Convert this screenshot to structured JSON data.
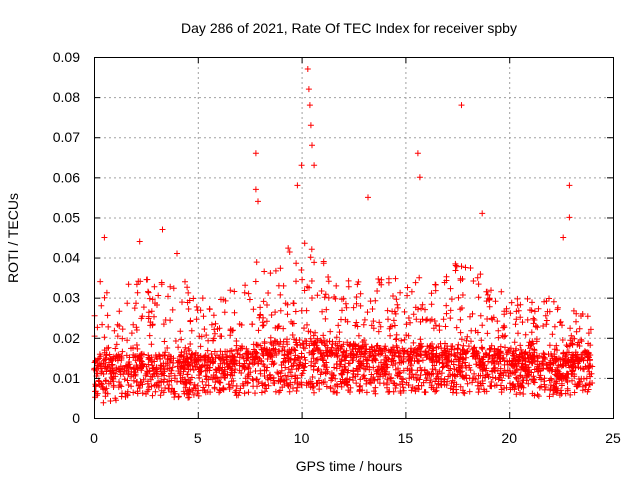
{
  "chart_data": {
    "type": "scatter",
    "title": "Day 286 of 2021, Rate Of TEC Index for receiver spby",
    "xlabel": "GPS time / hours",
    "ylabel": "ROTI / TECUs",
    "xlim": [
      0,
      25
    ],
    "ylim": [
      0,
      0.09
    ],
    "x_ticks": [
      0,
      5,
      10,
      15,
      20,
      25
    ],
    "x_tick_labels": [
      "0",
      "5",
      "10",
      "15",
      "20",
      "25"
    ],
    "y_ticks": [
      0,
      0.01,
      0.02,
      0.03,
      0.04,
      0.05,
      0.06,
      0.07,
      0.08,
      0.09
    ],
    "y_tick_labels": [
      "0",
      "0.01",
      "0.02",
      "0.03",
      "0.04",
      "0.05",
      "0.06",
      "0.07",
      "0.08",
      "0.09"
    ],
    "grid": true,
    "marker": "plus",
    "color": "#ff0000",
    "data_range_x": [
      0,
      24
    ],
    "series": [
      {
        "name": "ROTI",
        "notable_points": [
          {
            "x": 0.3,
            "y": 0.034
          },
          {
            "x": 0.5,
            "y": 0.045
          },
          {
            "x": 2.2,
            "y": 0.044
          },
          {
            "x": 3.3,
            "y": 0.047
          },
          {
            "x": 4.0,
            "y": 0.041
          },
          {
            "x": 7.8,
            "y": 0.066
          },
          {
            "x": 7.8,
            "y": 0.057
          },
          {
            "x": 7.9,
            "y": 0.054
          },
          {
            "x": 9.8,
            "y": 0.058
          },
          {
            "x": 10.0,
            "y": 0.063
          },
          {
            "x": 10.3,
            "y": 0.087
          },
          {
            "x": 10.35,
            "y": 0.082
          },
          {
            "x": 10.4,
            "y": 0.078
          },
          {
            "x": 10.45,
            "y": 0.073
          },
          {
            "x": 10.5,
            "y": 0.068
          },
          {
            "x": 10.6,
            "y": 0.063
          },
          {
            "x": 13.2,
            "y": 0.055
          },
          {
            "x": 15.6,
            "y": 0.066
          },
          {
            "x": 15.7,
            "y": 0.06
          },
          {
            "x": 17.7,
            "y": 0.078
          },
          {
            "x": 18.7,
            "y": 0.051
          },
          {
            "x": 22.9,
            "y": 0.058
          },
          {
            "x": 22.9,
            "y": 0.05
          },
          {
            "x": 22.6,
            "y": 0.045
          }
        ],
        "envelope": [
          {
            "x": 0,
            "min": 0.003,
            "typical": 0.012,
            "upper": 0.03
          },
          {
            "x": 2,
            "min": 0.005,
            "typical": 0.012,
            "upper": 0.035
          },
          {
            "x": 4,
            "min": 0.005,
            "typical": 0.012,
            "upper": 0.035
          },
          {
            "x": 6,
            "min": 0.005,
            "typical": 0.012,
            "upper": 0.03
          },
          {
            "x": 8,
            "min": 0.006,
            "typical": 0.015,
            "upper": 0.04
          },
          {
            "x": 10,
            "min": 0.006,
            "typical": 0.016,
            "upper": 0.045
          },
          {
            "x": 12,
            "min": 0.006,
            "typical": 0.015,
            "upper": 0.035
          },
          {
            "x": 14,
            "min": 0.006,
            "typical": 0.014,
            "upper": 0.035
          },
          {
            "x": 16,
            "min": 0.006,
            "typical": 0.014,
            "upper": 0.035
          },
          {
            "x": 18,
            "min": 0.006,
            "typical": 0.014,
            "upper": 0.04
          },
          {
            "x": 20,
            "min": 0.006,
            "typical": 0.013,
            "upper": 0.03
          },
          {
            "x": 22,
            "min": 0.005,
            "typical": 0.012,
            "upper": 0.03
          },
          {
            "x": 24,
            "min": 0.006,
            "typical": 0.013,
            "upper": 0.025
          }
        ]
      }
    ]
  }
}
